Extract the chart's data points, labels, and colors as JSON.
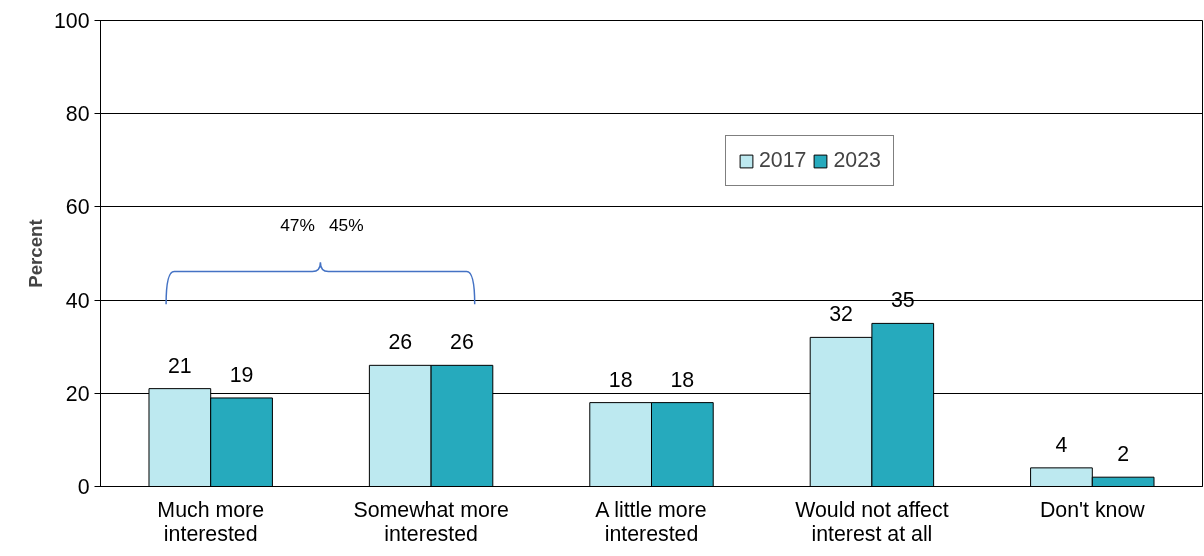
{
  "chart_data": {
    "type": "bar",
    "ylabel": "Percent",
    "categories": [
      "Much more\ninterested",
      "Somewhat more\ninterested",
      "A little more\ninterested",
      "Would not affect\ninterest at all",
      "Don't know"
    ],
    "series": [
      {
        "name": "2017",
        "color": "#bde9f0",
        "values": [
          21,
          26,
          18,
          32,
          4
        ]
      },
      {
        "name": "2023",
        "color": "#26aabd",
        "values": [
          19,
          26,
          18,
          35,
          2
        ]
      }
    ],
    "ylim": [
      0,
      100
    ],
    "yticks": [
      0,
      20,
      40,
      60,
      80,
      100
    ],
    "grid": "y",
    "legend": "top right",
    "data_labels": true,
    "annotations": [
      "47%",
      "45%"
    ]
  }
}
